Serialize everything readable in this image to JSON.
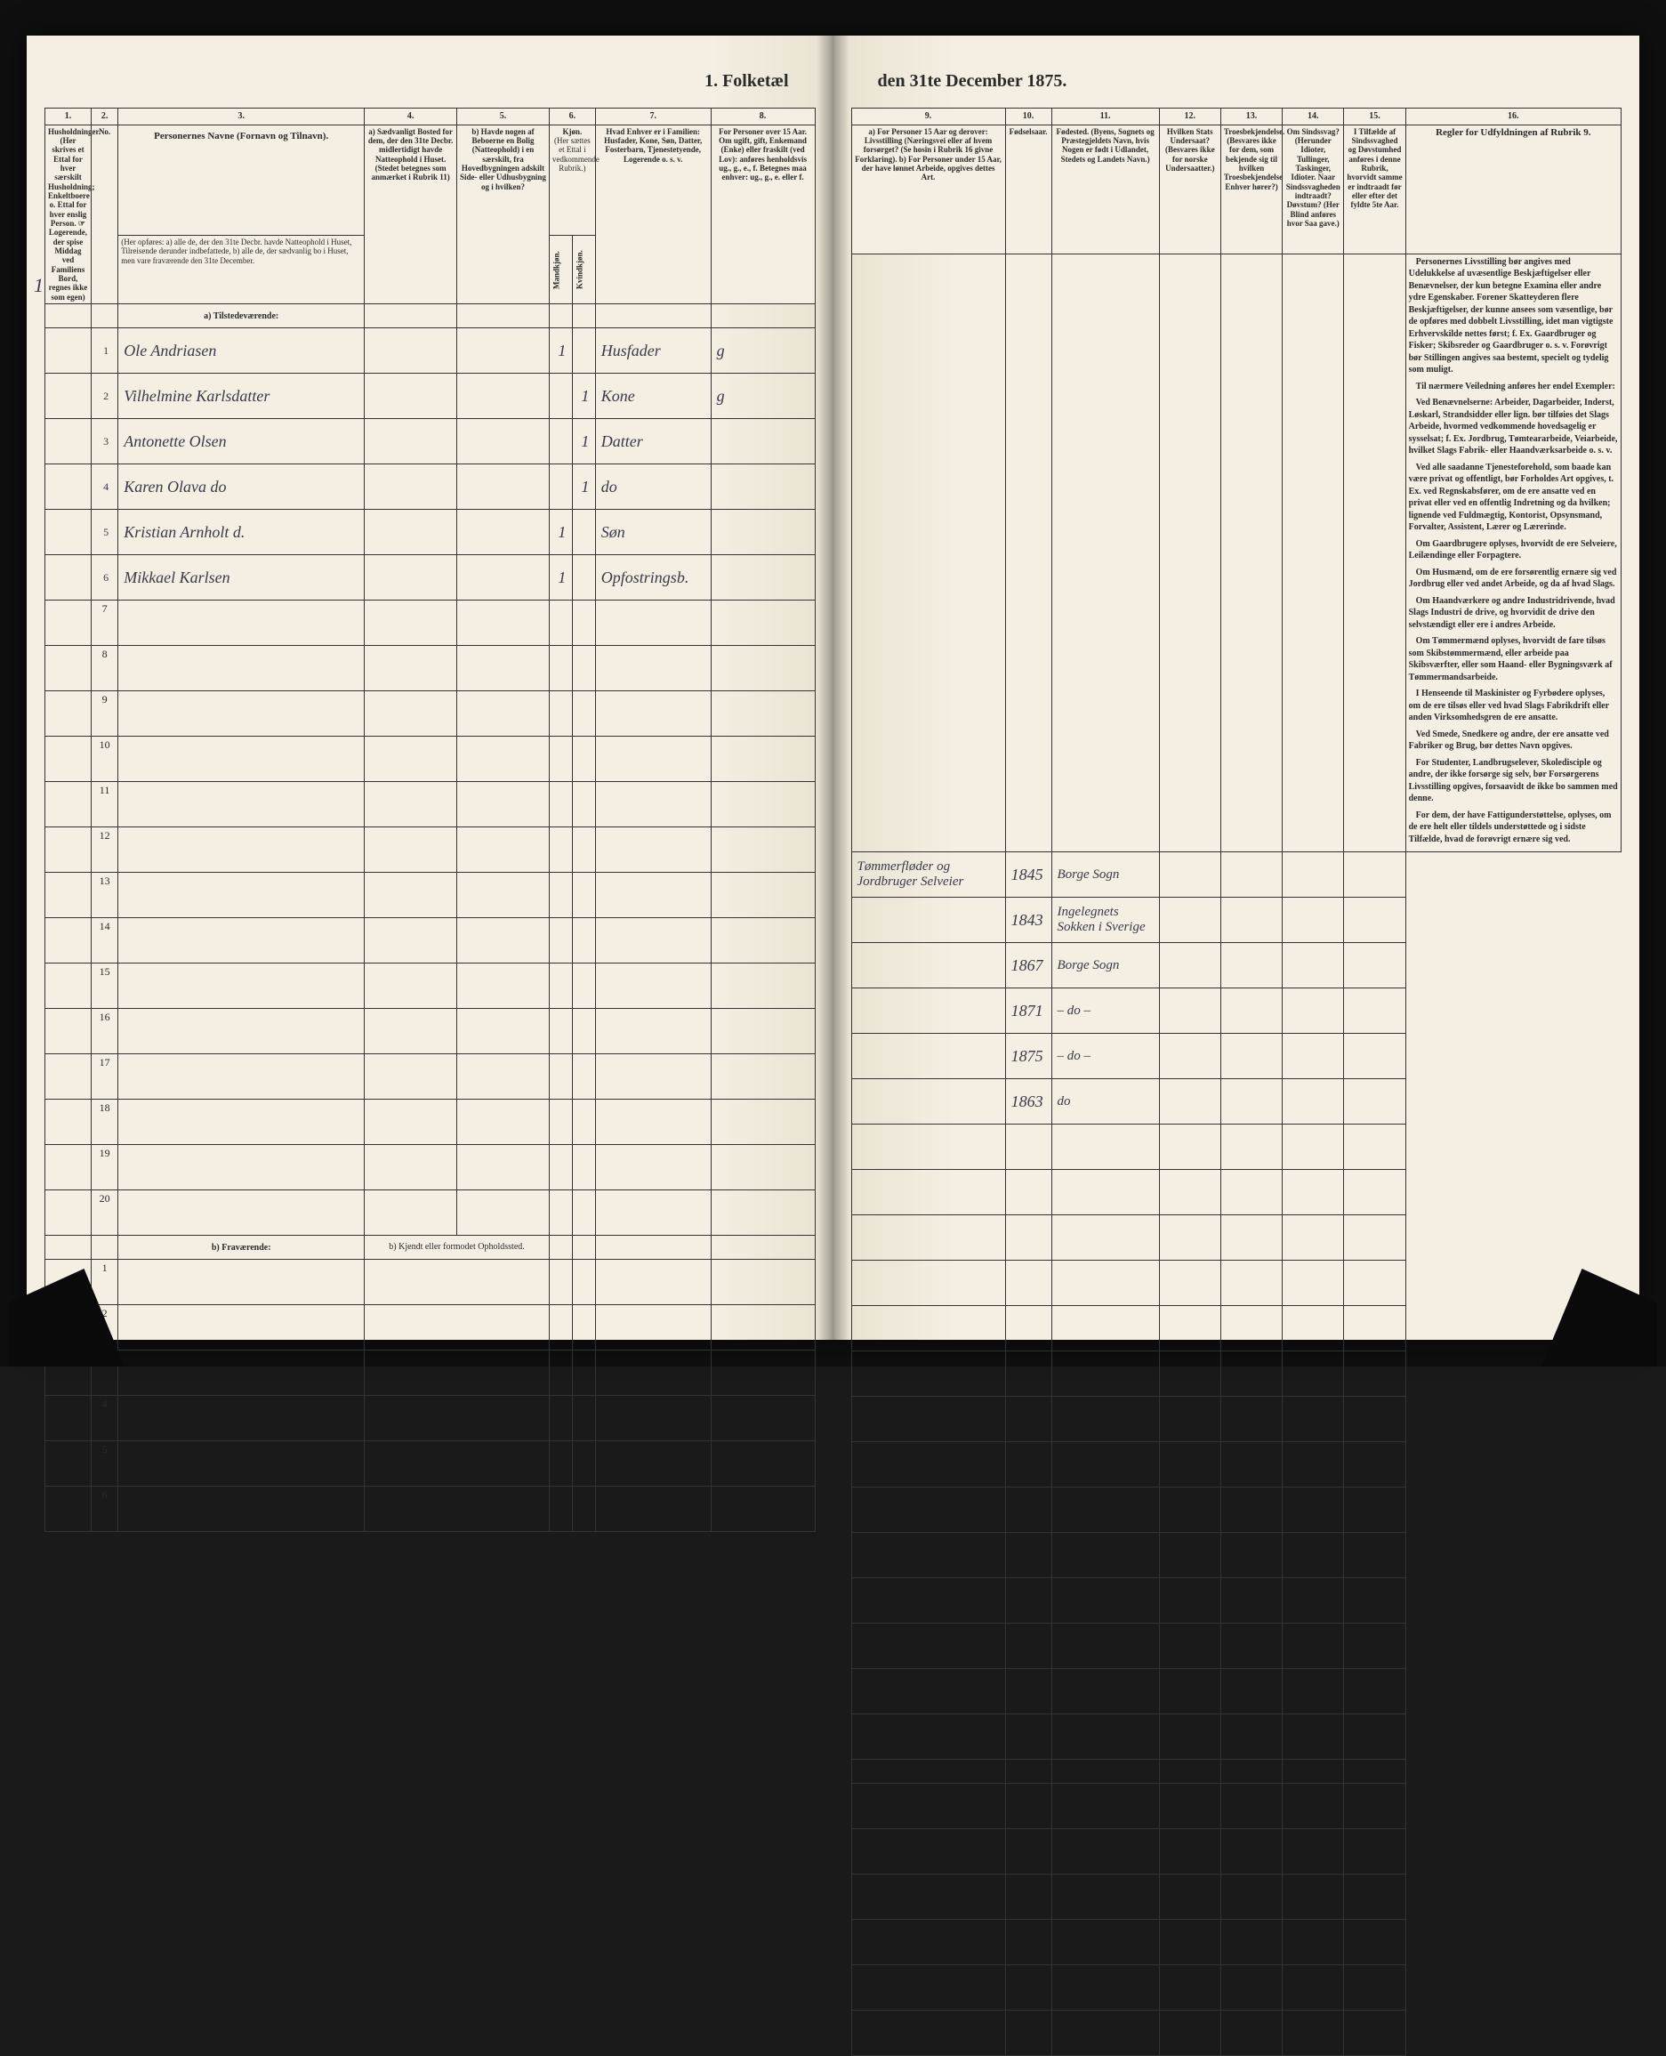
{
  "title_left": "1. Folketæl",
  "title_right": "den 31te December 1875.",
  "columns_left": {
    "c1": "1.",
    "c2": "2.",
    "c3": "3.",
    "c4": "4.",
    "c5": "5.",
    "c6": "6.",
    "c7": "7.",
    "c8": "8."
  },
  "columns_right": {
    "c9": "9.",
    "c10": "10.",
    "c11": "11.",
    "c12": "12.",
    "c13": "13.",
    "c14": "14.",
    "c15": "15.",
    "c16": "16."
  },
  "headers_left": {
    "h1": "Husholdninger.\n(Her skrives et Ettal for hver særskilt Husholdning; Enkeltboere o. Ettal for hver enslig Person.\n☞ Logerende, der spise Middag ved Familiens Bord, regnes ikke som egen)",
    "h2": "No.",
    "h3_title": "Personernes Navne (Fornavn og Tilnavn).",
    "h3_sub": "(Her opføres:\na) alle de, der den 31te Decbr. havde Natteophold i Huset, Tilreisende derunder indbefattede,\nb) alle de, der sædvanlig bo i Huset, men vare fraværende den 31te December.",
    "h4": "a) Sædvanligt Bosted for dem, der den 31te Decbr. midlertidigt havde Natteophold i Huset.\n(Stedet betegnes som anmærket i Rubrik 11)",
    "h5": "b) Havde nogen af Beboerne en Bolig (Natteophold) i en særskilt, fra Hovedbygningen adskilt Side- eller Udhusbygning og i hvilken?",
    "h6_top": "Kjøn.",
    "h6_sub": "(Her sættes et Ettal i vedkommende Rubrik.)",
    "h6_m": "Mandkjøn.",
    "h6_k": "Kvindkjøn.",
    "h7": "Hvad Enhver er i Familien:\nHusfader, Kone, Søn, Datter, Fosterbarn, Tjenestetyende, Logerende o. s. v.",
    "h8": "For Personer over 15 Aar. Om ugift, gift, Enkemand (Enke) eller fraskilt (ved Lov): anføres henholdsvis ug., g., e., f.\nBetegnes maa enhver: ug., g., e. eller f."
  },
  "headers_right": {
    "h9": "a) For Personer 15 Aar og derover: Livsstilling (Næringsvei eller af hvem forsørget? (Se hosin i Rubrik 16 givne Forklaring).\nb) For Personer under 15 Aar, der have lønnet Arbeide, opgives dettes Art.",
    "h10": "Fødselsaar.",
    "h11": "Fødested.\n(Byens, Sognets og Præstegjeldets Navn, hvis Nogen er født i Udlandet, Stedets og Landets Navn.)",
    "h12": "Hvilken Stats Undersaat?\n(Besvares ikke for norske Undersaatter.)",
    "h13": "Troesbekjendelse.\n(Besvares ikke for dem, som bekjende sig til hvilken Troesbekjendelse Enhver hører?)",
    "h14": "Om Sindssvag? (Herunder Idioter, Tullinger, Taskinger, Idioter. Naar Sindssvagheden indtraadt? Døvstum? (Her Blind anføres hvor Saa gave.)",
    "h15": "I Tilfælde af Sindssvaghed og Døvstumhed anføres i denne Rubrik, hvorvidt samme er indtraadt før eller efter det fyldte 5te Aar.",
    "h16_title": "Regler for Udfyldningen af Rubrik 9."
  },
  "sections": {
    "a": "a) Tilstedeværende:",
    "b": "b) Fraværende:",
    "b_col4": "b) Kjendt eller formodet Opholdssted."
  },
  "household_num": "1",
  "rows": [
    {
      "n": "1",
      "name": "Ole Andriasen",
      "c6m": "1",
      "c6k": "",
      "c7": "Husfader",
      "c8": "g",
      "c9": "Tømmerfløder og Jordbruger Selveier",
      "c10": "1845",
      "c11": "Borge Sogn"
    },
    {
      "n": "2",
      "name": "Vilhelmine Karlsdatter",
      "c6m": "",
      "c6k": "1",
      "c7": "Kone",
      "c8": "g",
      "c9": "",
      "c10": "1843",
      "c11": "Ingelegnets Sokken i Sverige"
    },
    {
      "n": "3",
      "name": "Antonette Olsen",
      "c6m": "",
      "c6k": "1",
      "c7": "Datter",
      "c8": "",
      "c9": "",
      "c10": "1867",
      "c11": "Borge Sogn"
    },
    {
      "n": "4",
      "name": "Karen Olava do",
      "c6m": "",
      "c6k": "1",
      "c7": "do",
      "c8": "",
      "c9": "",
      "c10": "1871",
      "c11": "– do –"
    },
    {
      "n": "5",
      "name": "Kristian Arnholt d.",
      "c6m": "1",
      "c6k": "",
      "c7": "Søn",
      "c8": "",
      "c9": "",
      "c10": "1875",
      "c11": "– do –"
    },
    {
      "n": "6",
      "name": "Mikkael Karlsen",
      "c6m": "1",
      "c6k": "",
      "c7": "Opfostringsb.",
      "c8": "",
      "c9": "",
      "c10": "1863",
      "c11": "do"
    }
  ],
  "empty_left": [
    "7",
    "8",
    "9",
    "10",
    "11",
    "12",
    "13",
    "14",
    "15",
    "16",
    "17",
    "18",
    "19",
    "20"
  ],
  "empty_b": [
    "1",
    "2",
    "3",
    "4",
    "5",
    "6"
  ],
  "rubric": {
    "p1": "Personernes Livsstilling bør angives med Udelukkelse af uvæsentlige Beskjæftigelser eller Benævnelser, der kun betegne Examina eller andre ydre Egenskaber. Forener Skatteyderen flere Beskjæftigelser, der kunne ansees som væsentlige, bør de opføres med dobbelt Livsstilling, idet man vigtigste Erhvervskilde nettes først; f. Ex. Gaardbruger og Fisker; Skibsreder og Gaardbruger o. s. v. Forøvrigt bør Stillingen angives saa bestemt, specielt og tydelig som muligt.",
    "p2": "Til nærmere Veiledning anføres her endel Exempler:",
    "p3": "Ved Benævnelserne: Arbeider, Dagarbeider, Inderst, Løskarl, Strandsidder eller lign. bør tilføies det Slags Arbeide, hvormed vedkommende hovedsagelig er sysselsat; f. Ex. Jordbrug, Tømteararbeide, Veiarbeide, hvilket Slags Fabrik- eller Haandværksarbeide o. s. v.",
    "p4": "Ved alle saadanne Tjenesteforehold, som baade kan være privat og offentligt, bør Forholdes Art opgives, t. Ex. ved Regnskabsfører, om de ere ansatte ved en privat eller ved en offentlig Indretning og da hvilken; lignende ved Fuldmægtig, Kontorist, Opsynsmand, Forvalter, Assistent, Lærer og Lærerinde.",
    "p5": "Om Gaardbrugere oplyses, hvorvidt de ere Selveiere, Leilændinge eller Forpagtere.",
    "p6": "Om Husmænd, om de ere forsørentlig ernære sig ved Jordbrug eller ved andet Arbeide, og da af hvad Slags.",
    "p7": "Om Haandværkere og andre Industridrivende, hvad Slags Industri de drive, og hvorvidit de drive den selvstændigt eller ere i andres Arbeide.",
    "p8": "Om Tømmermænd oplyses, hvorvidt de fare tilsøs som Skibstømmermænd, eller arbeide paa Skibsværfter, eller som Haand- eller Bygningsværk af Tømmermandsarbeide.",
    "p9": "I Henseende til Maskinister og Fyrbødere oplyses, om de ere tilsøs eller ved hvad Slags Fabrikdrift eller anden Virksomhedsgren de ere ansatte.",
    "p10": "Ved Smede, Snedkere og andre, der ere ansatte ved Fabriker og Brug, bør dettes Navn opgives.",
    "p11": "For Studenter, Landbrugselever, Skoledisciple og andre, der ikke forsørge sig selv, bør Forsørgerens Livsstilling opgives, forsaavidt de ikke bo sammen med denne.",
    "p12": "For dem, der have Fattigunderstøttelse, oplyses, om de ere helt eller tildels understøttede og i sidste Tilfælde, hvad de forøvrigt ernære sig ved."
  }
}
